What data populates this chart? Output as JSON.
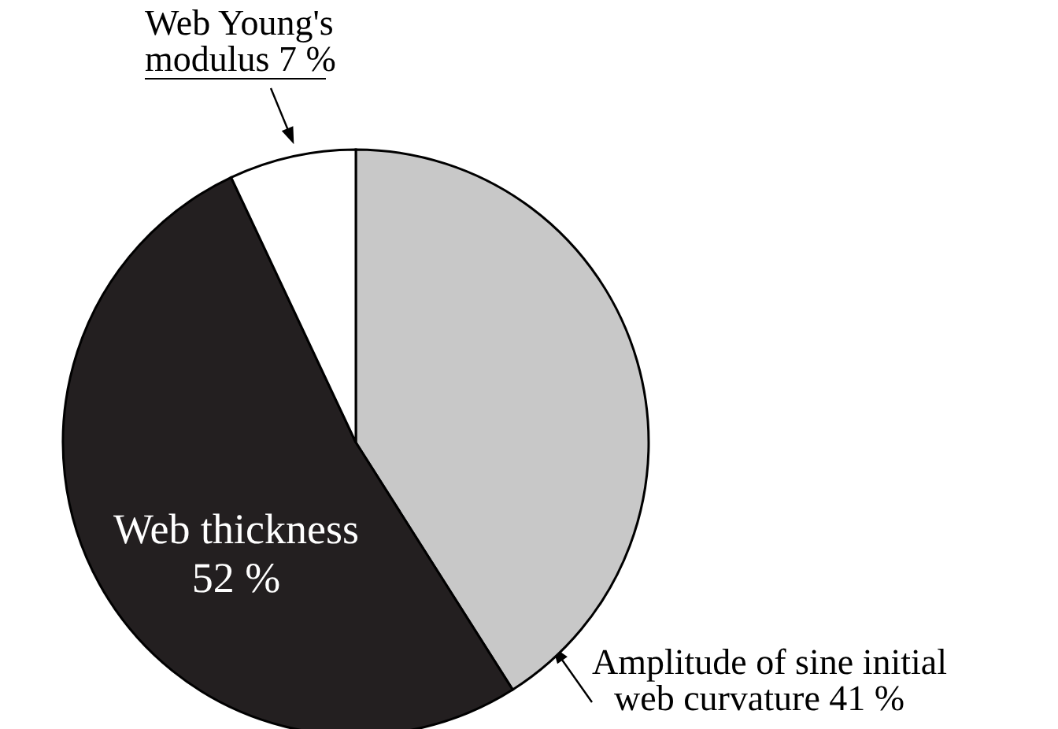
{
  "chart_data": {
    "type": "pie",
    "categories": [
      "Amplitude of sine initial web curvature",
      "Web thickness",
      "Web Young's modulus"
    ],
    "values": [
      41,
      52,
      7
    ],
    "colors": [
      "#c8c8c8",
      "#231f20",
      "#ffffff"
    ],
    "value_labels": [
      "41 %",
      "52 %",
      "7 %"
    ]
  }
}
